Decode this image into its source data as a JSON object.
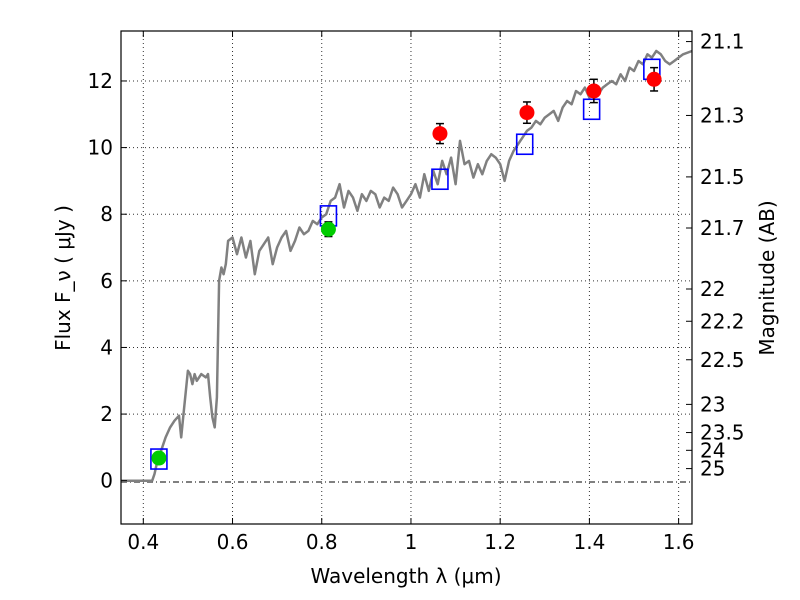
{
  "chart_data": {
    "type": "scatter",
    "xlabel": "Wavelength  λ (μm)",
    "ylabel": "Flux  F_ν  ( μJy )",
    "ylabel2": "Magnitude (AB)",
    "xlim": [
      0.35,
      1.63
    ],
    "ylim": [
      -1.3,
      13.5
    ],
    "grid": true,
    "x_ticks": [
      0.4,
      0.6,
      0.8,
      1.0,
      1.2,
      1.4,
      1.6
    ],
    "x_tick_labels": [
      "0.4",
      "0.6",
      "0.8",
      "1",
      "1.2",
      "1.4",
      "1.6"
    ],
    "y_ticks": [
      0,
      2,
      4,
      6,
      8,
      10,
      12
    ],
    "y_tick_labels": [
      "0",
      "2",
      "4",
      "6",
      "8",
      "10",
      "12"
    ],
    "mag_ticks": [
      "21.1",
      "21.3",
      "21.5",
      "21.7",
      "22",
      "22.2",
      "22.5",
      "23",
      "23.5",
      "24",
      "25"
    ],
    "sed_model": {
      "color": "#808080",
      "x": [
        0.35,
        0.42,
        0.425,
        0.43,
        0.44,
        0.45,
        0.46,
        0.47,
        0.48,
        0.485,
        0.49,
        0.5,
        0.505,
        0.51,
        0.515,
        0.52,
        0.53,
        0.54,
        0.545,
        0.55,
        0.555,
        0.56,
        0.565,
        0.57,
        0.575,
        0.58,
        0.585,
        0.59,
        0.6,
        0.61,
        0.62,
        0.63,
        0.64,
        0.65,
        0.66,
        0.67,
        0.68,
        0.69,
        0.7,
        0.71,
        0.72,
        0.73,
        0.74,
        0.75,
        0.76,
        0.77,
        0.78,
        0.79,
        0.8,
        0.81,
        0.82,
        0.83,
        0.84,
        0.85,
        0.86,
        0.87,
        0.88,
        0.89,
        0.9,
        0.91,
        0.92,
        0.93,
        0.94,
        0.95,
        0.96,
        0.97,
        0.98,
        0.99,
        1.0,
        1.01,
        1.02,
        1.03,
        1.04,
        1.05,
        1.06,
        1.07,
        1.08,
        1.09,
        1.1,
        1.11,
        1.12,
        1.13,
        1.14,
        1.15,
        1.16,
        1.17,
        1.18,
        1.19,
        1.2,
        1.21,
        1.22,
        1.23,
        1.24,
        1.25,
        1.26,
        1.27,
        1.28,
        1.29,
        1.3,
        1.31,
        1.32,
        1.33,
        1.34,
        1.35,
        1.36,
        1.37,
        1.38,
        1.39,
        1.4,
        1.41,
        1.42,
        1.43,
        1.44,
        1.45,
        1.46,
        1.47,
        1.48,
        1.49,
        1.5,
        1.51,
        1.52,
        1.53,
        1.54,
        1.55,
        1.56,
        1.57,
        1.58,
        1.59,
        1.6,
        1.61,
        1.63
      ],
      "y": [
        0.0,
        0.0,
        0.2,
        0.5,
        0.9,
        1.3,
        1.6,
        1.8,
        1.95,
        1.3,
        2.0,
        3.3,
        3.2,
        2.9,
        3.2,
        3.0,
        3.2,
        3.1,
        3.2,
        2.5,
        1.9,
        1.6,
        2.5,
        6.0,
        6.4,
        6.2,
        6.5,
        7.2,
        7.3,
        6.8,
        7.3,
        6.7,
        7.2,
        6.2,
        6.9,
        7.1,
        7.3,
        6.5,
        7.0,
        7.3,
        7.5,
        6.9,
        7.2,
        7.6,
        7.4,
        7.5,
        7.8,
        7.7,
        7.9,
        8.0,
        8.4,
        8.5,
        8.9,
        8.2,
        8.7,
        8.5,
        8.1,
        8.6,
        8.4,
        8.7,
        8.6,
        8.2,
        8.5,
        8.4,
        8.8,
        8.6,
        8.2,
        8.4,
        8.6,
        8.9,
        8.5,
        9.2,
        8.7,
        9.3,
        8.9,
        9.6,
        9.2,
        9.7,
        8.9,
        10.2,
        9.5,
        9.6,
        9.1,
        9.5,
        9.2,
        9.6,
        9.8,
        9.7,
        9.5,
        9.0,
        9.6,
        9.9,
        10.1,
        10.3,
        10.5,
        10.6,
        10.8,
        10.7,
        10.9,
        11.0,
        11.1,
        10.8,
        11.2,
        11.4,
        11.3,
        11.7,
        11.6,
        11.8,
        11.5,
        11.9,
        11.6,
        11.8,
        11.9,
        12.0,
        11.9,
        12.2,
        12.0,
        12.4,
        12.3,
        12.6,
        12.5,
        12.8,
        12.7,
        12.9,
        12.8,
        12.6,
        12.5,
        12.6,
        12.7,
        12.8,
        12.9
      ]
    },
    "model_photometry": {
      "color": "#0000ff",
      "points": [
        {
          "x": 0.435,
          "y": 0.65
        },
        {
          "x": 0.815,
          "y": 7.95
        },
        {
          "x": 1.065,
          "y": 9.05
        },
        {
          "x": 1.255,
          "y": 10.1
        },
        {
          "x": 1.405,
          "y": 11.15
        },
        {
          "x": 1.54,
          "y": 12.35
        }
      ]
    },
    "observed_ground": {
      "color": "#00cc00",
      "points": [
        {
          "x": 0.435,
          "y": 0.68,
          "err": 0.08
        },
        {
          "x": 0.815,
          "y": 7.55,
          "err": 0.22
        }
      ]
    },
    "observed_space": {
      "color": "#ff0000",
      "points": [
        {
          "x": 1.065,
          "y": 10.42,
          "err": 0.3
        },
        {
          "x": 1.26,
          "y": 11.05,
          "err": 0.32
        },
        {
          "x": 1.41,
          "y": 11.7,
          "err": 0.35
        },
        {
          "x": 1.545,
          "y": 12.05,
          "err": 0.35
        }
      ]
    }
  }
}
